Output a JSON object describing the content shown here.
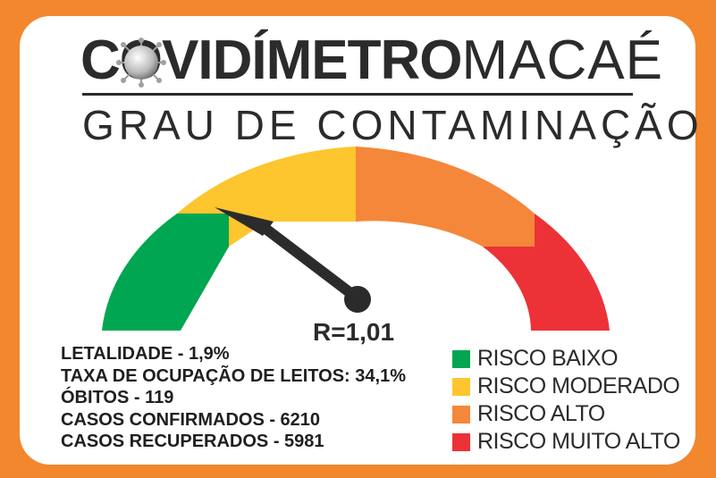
{
  "header": {
    "logo_bold": "COVIDÍMETRO",
    "logo_light": "MACAÉ",
    "subtitle": "GRAU DE CONTAMINAÇÃO"
  },
  "gauge": {
    "reading_label": "R=1,01",
    "segments": [
      {
        "name": "green",
        "color": "#00a651"
      },
      {
        "name": "yellow",
        "color": "#fdc52e"
      },
      {
        "name": "orange",
        "color": "#f4873a"
      },
      {
        "name": "red",
        "color": "#ec3237"
      }
    ]
  },
  "stats": [
    "LETALIDADE - 1,9%",
    "TAXA DE OCUPAÇÃO DE LEITOS: 34,1%",
    "ÓBITOS - 119",
    "CASOS CONFIRMADOS - 6210",
    "CASOS RECUPERADOS - 5981"
  ],
  "legend": [
    {
      "label": "RISCO BAIXO",
      "color": "#00a651"
    },
    {
      "label": "RISCO MODERADO",
      "color": "#fdc52e"
    },
    {
      "label": "RISCO ALTO",
      "color": "#f4873a"
    },
    {
      "label": "RISCO MUITO ALTO",
      "color": "#ec3237"
    }
  ],
  "colors": {
    "frame": "#f2872e",
    "text": "#2b2b2b",
    "needle": "#2b2b2b"
  }
}
